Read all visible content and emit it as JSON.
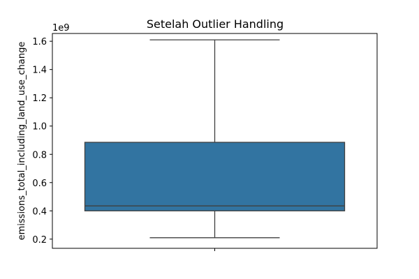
{
  "chart_data": {
    "type": "box",
    "title": "Setelah Outlier Handling",
    "xlabel": "",
    "ylabel": "emissions_total_including_land_use_change",
    "offset_label": "1e9",
    "y_scale_factor": 1000000000,
    "ylim": [
      0.135,
      1.655
    ],
    "yticks": [
      0.2,
      0.4,
      0.6,
      0.8,
      1.0,
      1.2,
      1.4,
      1.6
    ],
    "ytick_labels": [
      "0.2",
      "0.4",
      "0.6",
      "0.8",
      "1.0",
      "1.2",
      "1.4",
      "1.6"
    ],
    "grid": false,
    "box": {
      "whisker_low": 0.21,
      "q1": 0.4,
      "median": 0.435,
      "q3": 0.885,
      "whisker_high": 1.61
    },
    "colors": {
      "box_fill": "#3274a1",
      "line": "#3f3f3f",
      "axis": "#000000"
    }
  }
}
